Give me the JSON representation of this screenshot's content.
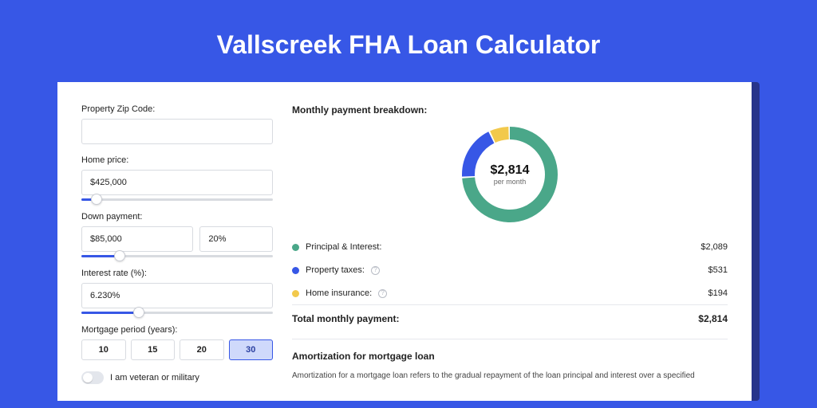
{
  "title": "Vallscreek FHA Loan Calculator",
  "colors": {
    "page_bg": "#3757e6",
    "card_shadow": "#27348b",
    "card_bg": "#ffffff",
    "border": "#d8dbe0",
    "accent": "#3757e6"
  },
  "form": {
    "zip": {
      "label": "Property Zip Code:",
      "value": ""
    },
    "home_price": {
      "label": "Home price:",
      "value": "$425,000",
      "slider_pct": 8
    },
    "down_payment": {
      "label": "Down payment:",
      "value": "$85,000",
      "pct": "20%",
      "slider_pct": 20
    },
    "interest": {
      "label": "Interest rate (%):",
      "value": "6.230%",
      "slider_pct": 30
    },
    "period": {
      "label": "Mortgage period (years):",
      "options": [
        "10",
        "15",
        "20",
        "30"
      ],
      "selected": "30"
    },
    "veteran": {
      "label": "I am veteran or military",
      "on": false
    }
  },
  "breakdown": {
    "title": "Monthly payment breakdown:",
    "donut": {
      "amount": "$2,814",
      "sub": "per month",
      "slices": [
        {
          "color": "#4aa789",
          "pct": 74.2
        },
        {
          "color": "#3757e6",
          "pct": 18.9
        },
        {
          "color": "#f2c94c",
          "pct": 6.9
        }
      ],
      "gap_deg": 2,
      "stroke_width": 16,
      "size": 120
    },
    "rows": [
      {
        "label": "Principal & Interest:",
        "value": "$2,089",
        "color": "#4aa789",
        "info": false
      },
      {
        "label": "Property taxes:",
        "value": "$531",
        "color": "#3757e6",
        "info": true
      },
      {
        "label": "Home insurance:",
        "value": "$194",
        "color": "#f2c94c",
        "info": true
      }
    ],
    "total": {
      "label": "Total monthly payment:",
      "value": "$2,814"
    }
  },
  "amort": {
    "title": "Amortization for mortgage loan",
    "text": "Amortization for a mortgage loan refers to the gradual repayment of the loan principal and interest over a specified"
  }
}
